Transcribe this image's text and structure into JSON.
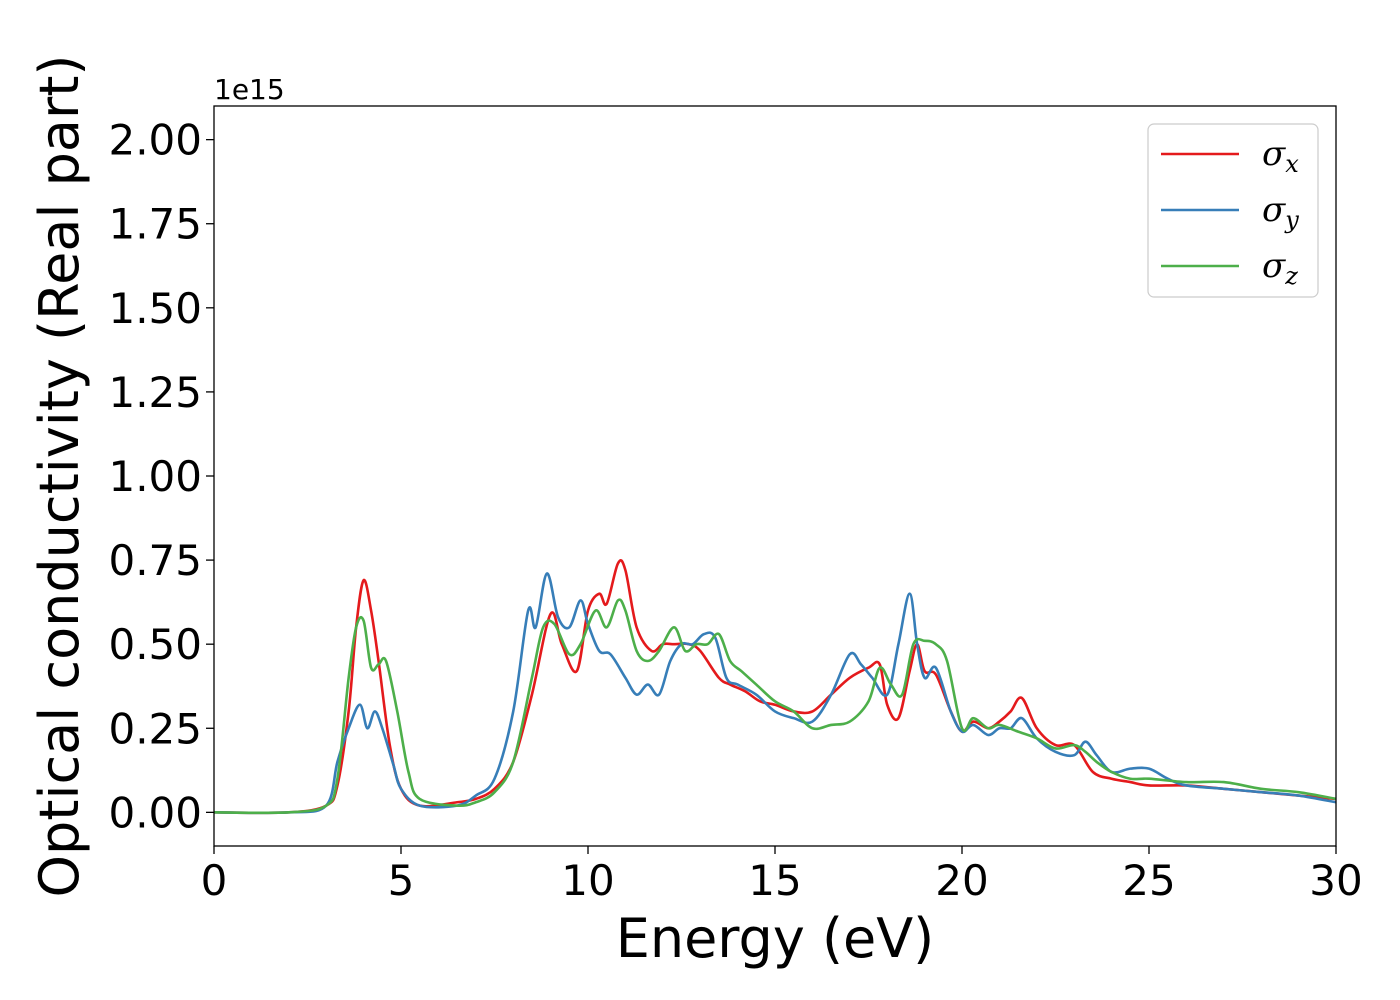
{
  "chart_data": {
    "type": "line",
    "xlabel": "Energy (eV)",
    "ylabel": "Optical conductivity (Real part)",
    "y_offset_label": "1e15",
    "xlim": [
      0,
      30
    ],
    "ylim": [
      -0.1,
      2.1
    ],
    "x_ticks": [
      0,
      5,
      10,
      15,
      20,
      25,
      30
    ],
    "x_tick_labels": [
      "0",
      "5",
      "10",
      "15",
      "20",
      "25",
      "30"
    ],
    "y_ticks": [
      0.0,
      0.25,
      0.5,
      0.75,
      1.0,
      1.25,
      1.5,
      1.75,
      2.0
    ],
    "y_tick_labels": [
      "0.00",
      "0.25",
      "0.50",
      "0.75",
      "1.00",
      "1.25",
      "1.50",
      "1.75",
      "2.00"
    ],
    "grid": false,
    "legend_position": "top-right",
    "series": [
      {
        "name": "σx",
        "symbol": "σ",
        "subscript": "x",
        "color": "#e41a1c",
        "x": [
          0,
          2,
          3,
          3.3,
          3.6,
          3.8,
          4.0,
          4.2,
          4.4,
          4.7,
          5.0,
          5.5,
          6.5,
          7.0,
          7.5,
          8.0,
          8.5,
          9.0,
          9.3,
          9.7,
          10.0,
          10.3,
          10.5,
          10.8,
          11.0,
          11.3,
          11.7,
          12.0,
          12.3,
          12.7,
          13.0,
          13.5,
          13.8,
          14.2,
          14.6,
          15.0,
          15.5,
          16.0,
          16.5,
          17.0,
          17.5,
          17.8,
          18.0,
          18.3,
          18.6,
          18.8,
          19.0,
          19.3,
          19.7,
          20.0,
          20.3,
          20.7,
          21.0,
          21.3,
          21.6,
          22.0,
          22.5,
          23.0,
          23.5,
          24.0,
          24.5,
          25.0,
          26.0,
          27.0,
          28.0,
          29.0,
          30.0
        ],
        "y": [
          0.0,
          0.0,
          0.02,
          0.08,
          0.3,
          0.55,
          0.69,
          0.6,
          0.45,
          0.2,
          0.07,
          0.02,
          0.03,
          0.04,
          0.07,
          0.15,
          0.35,
          0.59,
          0.5,
          0.42,
          0.6,
          0.65,
          0.62,
          0.74,
          0.72,
          0.55,
          0.48,
          0.5,
          0.5,
          0.5,
          0.48,
          0.4,
          0.38,
          0.36,
          0.33,
          0.32,
          0.3,
          0.3,
          0.35,
          0.4,
          0.43,
          0.44,
          0.32,
          0.28,
          0.42,
          0.5,
          0.42,
          0.41,
          0.3,
          0.24,
          0.27,
          0.25,
          0.27,
          0.3,
          0.34,
          0.25,
          0.2,
          0.2,
          0.12,
          0.1,
          0.09,
          0.08,
          0.08,
          0.07,
          0.06,
          0.05,
          0.04
        ]
      },
      {
        "name": "σy",
        "symbol": "σ",
        "subscript": "y",
        "color": "#377eb8",
        "x": [
          0,
          2,
          3,
          3.3,
          3.6,
          3.9,
          4.1,
          4.3,
          4.5,
          4.8,
          5.0,
          5.5,
          6.5,
          7.0,
          7.5,
          8.0,
          8.4,
          8.6,
          8.9,
          9.2,
          9.5,
          9.8,
          10.0,
          10.3,
          10.6,
          11.0,
          11.3,
          11.6,
          11.9,
          12.2,
          12.5,
          12.8,
          13.1,
          13.4,
          13.7,
          14.0,
          14.5,
          15.0,
          15.5,
          16.0,
          16.5,
          17.0,
          17.3,
          17.6,
          18.0,
          18.3,
          18.6,
          18.8,
          19.0,
          19.3,
          19.7,
          20.0,
          20.3,
          20.7,
          21.0,
          21.3,
          21.6,
          22.0,
          22.5,
          23.0,
          23.3,
          23.6,
          24.0,
          24.5,
          25.0,
          25.5,
          26.0,
          27.0,
          28.0,
          29.0,
          30.0
        ],
        "y": [
          0.0,
          0.0,
          0.02,
          0.15,
          0.25,
          0.32,
          0.25,
          0.3,
          0.25,
          0.14,
          0.07,
          0.02,
          0.02,
          0.05,
          0.1,
          0.3,
          0.6,
          0.55,
          0.71,
          0.58,
          0.55,
          0.63,
          0.56,
          0.48,
          0.47,
          0.4,
          0.35,
          0.38,
          0.35,
          0.45,
          0.5,
          0.5,
          0.53,
          0.52,
          0.4,
          0.38,
          0.35,
          0.3,
          0.28,
          0.27,
          0.35,
          0.47,
          0.44,
          0.4,
          0.35,
          0.5,
          0.65,
          0.5,
          0.4,
          0.43,
          0.3,
          0.24,
          0.26,
          0.23,
          0.25,
          0.25,
          0.28,
          0.22,
          0.18,
          0.17,
          0.21,
          0.17,
          0.12,
          0.13,
          0.13,
          0.1,
          0.08,
          0.07,
          0.06,
          0.05,
          0.03
        ]
      },
      {
        "name": "σz",
        "symbol": "σ",
        "subscript": "z",
        "color": "#4daf4a",
        "x": [
          0,
          2,
          3,
          3.3,
          3.6,
          3.8,
          4.0,
          4.2,
          4.4,
          4.6,
          4.9,
          5.2,
          5.5,
          6.5,
          7.0,
          7.5,
          8.0,
          8.5,
          8.8,
          9.1,
          9.5,
          9.8,
          10.2,
          10.5,
          10.8,
          11.0,
          11.3,
          11.6,
          11.9,
          12.3,
          12.6,
          12.9,
          13.2,
          13.5,
          13.8,
          14.1,
          14.5,
          15.0,
          15.5,
          16.0,
          16.5,
          17.0,
          17.5,
          17.8,
          18.1,
          18.4,
          18.7,
          19.0,
          19.3,
          19.6,
          20.0,
          20.3,
          20.7,
          21.0,
          21.5,
          22.0,
          22.5,
          23.0,
          23.3,
          23.6,
          24.0,
          24.5,
          25.0,
          26.0,
          27.0,
          28.0,
          29.0,
          30.0
        ],
        "y": [
          0.0,
          0.0,
          0.02,
          0.1,
          0.4,
          0.55,
          0.57,
          0.43,
          0.44,
          0.45,
          0.3,
          0.12,
          0.04,
          0.02,
          0.03,
          0.06,
          0.15,
          0.4,
          0.55,
          0.56,
          0.47,
          0.5,
          0.6,
          0.55,
          0.63,
          0.6,
          0.48,
          0.45,
          0.48,
          0.55,
          0.48,
          0.5,
          0.5,
          0.53,
          0.45,
          0.42,
          0.38,
          0.33,
          0.3,
          0.25,
          0.26,
          0.27,
          0.33,
          0.43,
          0.38,
          0.35,
          0.5,
          0.51,
          0.5,
          0.45,
          0.25,
          0.28,
          0.25,
          0.26,
          0.24,
          0.22,
          0.19,
          0.2,
          0.18,
          0.15,
          0.12,
          0.1,
          0.1,
          0.09,
          0.09,
          0.07,
          0.06,
          0.04
        ]
      }
    ]
  }
}
